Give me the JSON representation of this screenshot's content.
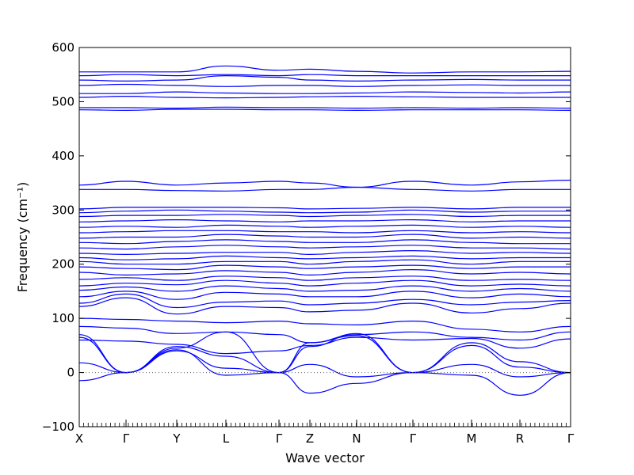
{
  "chart_data": {
    "type": "line",
    "title": "",
    "xlabel": "Wave vector",
    "ylabel": "Frequency (cm⁻¹)",
    "ylim": [
      -100,
      600
    ],
    "y_ticks": [
      -100,
      0,
      100,
      200,
      300,
      400,
      500,
      600
    ],
    "high_symmetry_points": [
      {
        "label": "X",
        "pos": 0.0
      },
      {
        "label": "Γ",
        "pos": 0.0952
      },
      {
        "label": "Y",
        "pos": 0.1984
      },
      {
        "label": "L",
        "pos": 0.2984
      },
      {
        "label": "Γ",
        "pos": 0.4065
      },
      {
        "label": "Z",
        "pos": 0.4694
      },
      {
        "label": "N",
        "pos": 0.5645
      },
      {
        "label": "Γ",
        "pos": 0.679
      },
      {
        "label": "M",
        "pos": 0.7984
      },
      {
        "label": "R",
        "pos": 0.8968
      },
      {
        "label": "Γ",
        "pos": 1.0
      }
    ],
    "line_color": "#0000ff",
    "zero_line": {
      "value": 0,
      "style": "dotted",
      "color": "#666666"
    },
    "series": [
      {
        "x": [
          0,
          0.0952,
          0.1984,
          0.2984,
          0.4065,
          0.4694,
          0.5645,
          0.679,
          0.7984,
          0.8968,
          1.0
        ],
        "y": [
          -15,
          0,
          45,
          75,
          0,
          -38,
          -20,
          0,
          -5,
          -42,
          0
        ]
      },
      {
        "x": [
          0,
          0.0952,
          0.1984,
          0.2984,
          0.4065,
          0.4694,
          0.5645,
          0.679,
          0.7984,
          0.8968,
          1.0
        ],
        "y": [
          18,
          0,
          48,
          30,
          0,
          15,
          -8,
          0,
          15,
          -8,
          0
        ]
      },
      {
        "x": [
          0,
          0.0952,
          0.1984,
          0.2984,
          0.4065,
          0.4694,
          0.5645,
          0.679,
          0.7984,
          0.8968,
          1.0
        ],
        "y": [
          65,
          0,
          42,
          -5,
          0,
          55,
          68,
          0,
          50,
          10,
          0
        ]
      },
      {
        "x": [
          0,
          0.0952,
          0.1984,
          0.2984,
          0.4065,
          0.4694,
          0.5645,
          0.679,
          0.7984,
          0.8968,
          1.0
        ],
        "y": [
          70,
          0,
          40,
          8,
          0,
          48,
          72,
          0,
          55,
          20,
          0
        ]
      },
      {
        "x": [
          0,
          0.0952,
          0.1984,
          0.2984,
          0.4065,
          0.4694,
          0.5645,
          0.679,
          0.7984,
          0.8968,
          1.0
        ],
        "y": [
          60,
          58,
          52,
          35,
          40,
          50,
          65,
          60,
          63,
          45,
          62
        ]
      },
      {
        "x": [
          0,
          0.0952,
          0.1984,
          0.2984,
          0.4065,
          0.4694,
          0.5645,
          0.679,
          0.7984,
          0.8968,
          1.0
        ],
        "y": [
          85,
          82,
          72,
          75,
          70,
          55,
          70,
          75,
          65,
          60,
          75
        ]
      },
      {
        "x": [
          0,
          0.0952,
          0.1984,
          0.2984,
          0.4065,
          0.4694,
          0.5645,
          0.679,
          0.7984,
          0.8968,
          1.0
        ],
        "y": [
          100,
          98,
          95,
          92,
          95,
          90,
          88,
          95,
          80,
          75,
          85
        ]
      },
      {
        "x": [
          0,
          0.0952,
          0.1984,
          0.2984,
          0.4065,
          0.4694,
          0.5645,
          0.679,
          0.7984,
          0.8968,
          1.0
        ],
        "y": [
          122,
          138,
          108,
          122,
          120,
          112,
          115,
          128,
          110,
          118,
          128
        ]
      },
      {
        "x": [
          0,
          0.0952,
          0.1984,
          0.2984,
          0.4065,
          0.4694,
          0.5645,
          0.679,
          0.7984,
          0.8968,
          1.0
        ],
        "y": [
          128,
          145,
          120,
          130,
          132,
          125,
          128,
          135,
          125,
          130,
          133
        ]
      },
      {
        "x": [
          0,
          0.0952,
          0.1984,
          0.2984,
          0.4065,
          0.4694,
          0.5645,
          0.679,
          0.7984,
          0.8968,
          1.0
        ],
        "y": [
          140,
          150,
          135,
          148,
          145,
          140,
          140,
          150,
          138,
          145,
          140
        ]
      },
      {
        "x": [
          0,
          0.0952,
          0.1984,
          0.2984,
          0.4065,
          0.4694,
          0.5645,
          0.679,
          0.7984,
          0.8968,
          1.0
        ],
        "y": [
          152,
          158,
          150,
          160,
          155,
          150,
          152,
          160,
          150,
          155,
          150
        ]
      },
      {
        "x": [
          0,
          0.0952,
          0.1984,
          0.2984,
          0.4065,
          0.4694,
          0.5645,
          0.679,
          0.7984,
          0.8968,
          1.0
        ],
        "y": [
          160,
          165,
          162,
          170,
          165,
          160,
          165,
          170,
          160,
          163,
          160
        ]
      },
      {
        "x": [
          0,
          0.0952,
          0.1984,
          0.2984,
          0.4065,
          0.4694,
          0.5645,
          0.679,
          0.7984,
          0.8968,
          1.0
        ],
        "y": [
          172,
          175,
          170,
          178,
          175,
          170,
          175,
          178,
          170,
          172,
          170
        ]
      },
      {
        "x": [
          0,
          0.0952,
          0.1984,
          0.2984,
          0.4065,
          0.4694,
          0.5645,
          0.679,
          0.7984,
          0.8968,
          1.0
        ],
        "y": [
          185,
          180,
          182,
          188,
          185,
          180,
          185,
          190,
          182,
          185,
          182
        ]
      },
      {
        "x": [
          0,
          0.0952,
          0.1984,
          0.2984,
          0.4065,
          0.4694,
          0.5645,
          0.679,
          0.7984,
          0.8968,
          1.0
        ],
        "y": [
          195,
          192,
          190,
          198,
          195,
          192,
          195,
          198,
          192,
          195,
          195
        ]
      },
      {
        "x": [
          0,
          0.0952,
          0.1984,
          0.2984,
          0.4065,
          0.4694,
          0.5645,
          0.679,
          0.7984,
          0.8968,
          1.0
        ],
        "y": [
          205,
          200,
          200,
          205,
          205,
          200,
          205,
          208,
          200,
          205,
          205
        ]
      },
      {
        "x": [
          0,
          0.0952,
          0.1984,
          0.2984,
          0.4065,
          0.4694,
          0.5645,
          0.679,
          0.7984,
          0.8968,
          1.0
        ],
        "y": [
          212,
          208,
          210,
          215,
          212,
          210,
          212,
          215,
          210,
          212,
          212
        ]
      },
      {
        "x": [
          0,
          0.0952,
          0.1984,
          0.2984,
          0.4065,
          0.4694,
          0.5645,
          0.679,
          0.7984,
          0.8968,
          1.0
        ],
        "y": [
          220,
          218,
          220,
          222,
          222,
          218,
          222,
          225,
          220,
          222,
          220
        ]
      },
      {
        "x": [
          0,
          0.0952,
          0.1984,
          0.2984,
          0.4065,
          0.4694,
          0.5645,
          0.679,
          0.7984,
          0.8968,
          1.0
        ],
        "y": [
          230,
          228,
          232,
          235,
          232,
          230,
          232,
          235,
          230,
          230,
          228
        ]
      },
      {
        "x": [
          0,
          0.0952,
          0.1984,
          0.2984,
          0.4065,
          0.4694,
          0.5645,
          0.679,
          0.7984,
          0.8968,
          1.0
        ],
        "y": [
          240,
          238,
          242,
          245,
          242,
          240,
          240,
          245,
          240,
          238,
          238
        ]
      },
      {
        "x": [
          0,
          0.0952,
          0.1984,
          0.2984,
          0.4065,
          0.4694,
          0.5645,
          0.679,
          0.7984,
          0.8968,
          1.0
        ],
        "y": [
          248,
          250,
          250,
          255,
          252,
          250,
          250,
          255,
          248,
          250,
          248
        ]
      },
      {
        "x": [
          0,
          0.0952,
          0.1984,
          0.2984,
          0.4065,
          0.4694,
          0.5645,
          0.679,
          0.7984,
          0.8968,
          1.0
        ],
        "y": [
          258,
          260,
          262,
          262,
          260,
          260,
          258,
          262,
          258,
          260,
          258
        ]
      },
      {
        "x": [
          0,
          0.0952,
          0.1984,
          0.2984,
          0.4065,
          0.4694,
          0.5645,
          0.679,
          0.7984,
          0.8968,
          1.0
        ],
        "y": [
          268,
          270,
          268,
          272,
          270,
          268,
          270,
          272,
          268,
          270,
          268
        ]
      },
      {
        "x": [
          0,
          0.0952,
          0.1984,
          0.2984,
          0.4065,
          0.4694,
          0.5645,
          0.679,
          0.7984,
          0.8968,
          1.0
        ],
        "y": [
          278,
          280,
          282,
          280,
          278,
          280,
          280,
          282,
          278,
          280,
          280
        ]
      },
      {
        "x": [
          0,
          0.0952,
          0.1984,
          0.2984,
          0.4065,
          0.4694,
          0.5645,
          0.679,
          0.7984,
          0.8968,
          1.0
        ],
        "y": [
          288,
          290,
          290,
          292,
          290,
          288,
          290,
          292,
          288,
          290,
          290
        ]
      },
      {
        "x": [
          0,
          0.0952,
          0.1984,
          0.2984,
          0.4065,
          0.4694,
          0.5645,
          0.679,
          0.7984,
          0.8968,
          1.0
        ],
        "y": [
          295,
          298,
          300,
          298,
          296,
          295,
          296,
          300,
          296,
          298,
          298
        ]
      },
      {
        "x": [
          0,
          0.0952,
          0.1984,
          0.2984,
          0.4065,
          0.4694,
          0.5645,
          0.679,
          0.7984,
          0.8968,
          1.0
        ],
        "y": [
          302,
          305,
          305,
          305,
          304,
          302,
          303,
          305,
          302,
          305,
          305
        ]
      },
      {
        "x": [
          0,
          0.0952,
          0.1984,
          0.2984,
          0.4065,
          0.4694,
          0.5645,
          0.679,
          0.7984,
          0.8968,
          1.0
        ],
        "y": [
          338,
          338,
          336,
          335,
          338,
          338,
          342,
          338,
          335,
          338,
          338
        ]
      },
      {
        "x": [
          0,
          0.0952,
          0.1984,
          0.2984,
          0.4065,
          0.4694,
          0.5645,
          0.679,
          0.7984,
          0.8968,
          1.0
        ],
        "y": [
          346,
          353,
          346,
          350,
          353,
          350,
          342,
          353,
          346,
          352,
          355
        ]
      },
      {
        "x": [
          0,
          0.0952,
          0.1984,
          0.2984,
          0.4065,
          0.4694,
          0.5645,
          0.679,
          0.7984,
          0.8968,
          1.0
        ],
        "y": [
          485,
          484,
          486,
          486,
          485,
          485,
          484,
          485,
          485,
          485,
          484
        ]
      },
      {
        "x": [
          0,
          0.0952,
          0.1984,
          0.2984,
          0.4065,
          0.4694,
          0.5645,
          0.679,
          0.7984,
          0.8968,
          1.0
        ],
        "y": [
          489,
          489,
          488,
          490,
          489,
          489,
          488,
          489,
          488,
          489,
          488
        ]
      },
      {
        "x": [
          0,
          0.0952,
          0.1984,
          0.2984,
          0.4065,
          0.4694,
          0.5645,
          0.679,
          0.7984,
          0.8968,
          1.0
        ],
        "y": [
          508,
          510,
          508,
          507,
          508,
          509,
          510,
          509,
          508,
          508,
          508
        ]
      },
      {
        "x": [
          0,
          0.0952,
          0.1984,
          0.2984,
          0.4065,
          0.4694,
          0.5645,
          0.679,
          0.7984,
          0.8968,
          1.0
        ],
        "y": [
          515,
          515,
          518,
          516,
          515,
          515,
          516,
          518,
          517,
          516,
          518
        ]
      },
      {
        "x": [
          0,
          0.0952,
          0.1984,
          0.2984,
          0.4065,
          0.4694,
          0.5645,
          0.679,
          0.7984,
          0.8968,
          1.0
        ],
        "y": [
          530,
          532,
          530,
          528,
          530,
          530,
          528,
          530,
          531,
          530,
          530
        ]
      },
      {
        "x": [
          0,
          0.0952,
          0.1984,
          0.2984,
          0.4065,
          0.4694,
          0.5645,
          0.679,
          0.7984,
          0.8968,
          1.0
        ],
        "y": [
          540,
          538,
          540,
          548,
          545,
          540,
          538,
          540,
          541,
          540,
          540
        ]
      },
      {
        "x": [
          0,
          0.0952,
          0.1984,
          0.2984,
          0.4065,
          0.4694,
          0.5645,
          0.679,
          0.7984,
          0.8968,
          1.0
        ],
        "y": [
          548,
          550,
          548,
          550,
          548,
          550,
          548,
          548,
          548,
          548,
          548
        ]
      },
      {
        "x": [
          0,
          0.0952,
          0.1984,
          0.2984,
          0.4065,
          0.4694,
          0.5645,
          0.679,
          0.7984,
          0.8968,
          1.0
        ],
        "y": [
          555,
          555,
          555,
          566,
          558,
          560,
          556,
          553,
          555,
          555,
          556
        ]
      }
    ]
  }
}
